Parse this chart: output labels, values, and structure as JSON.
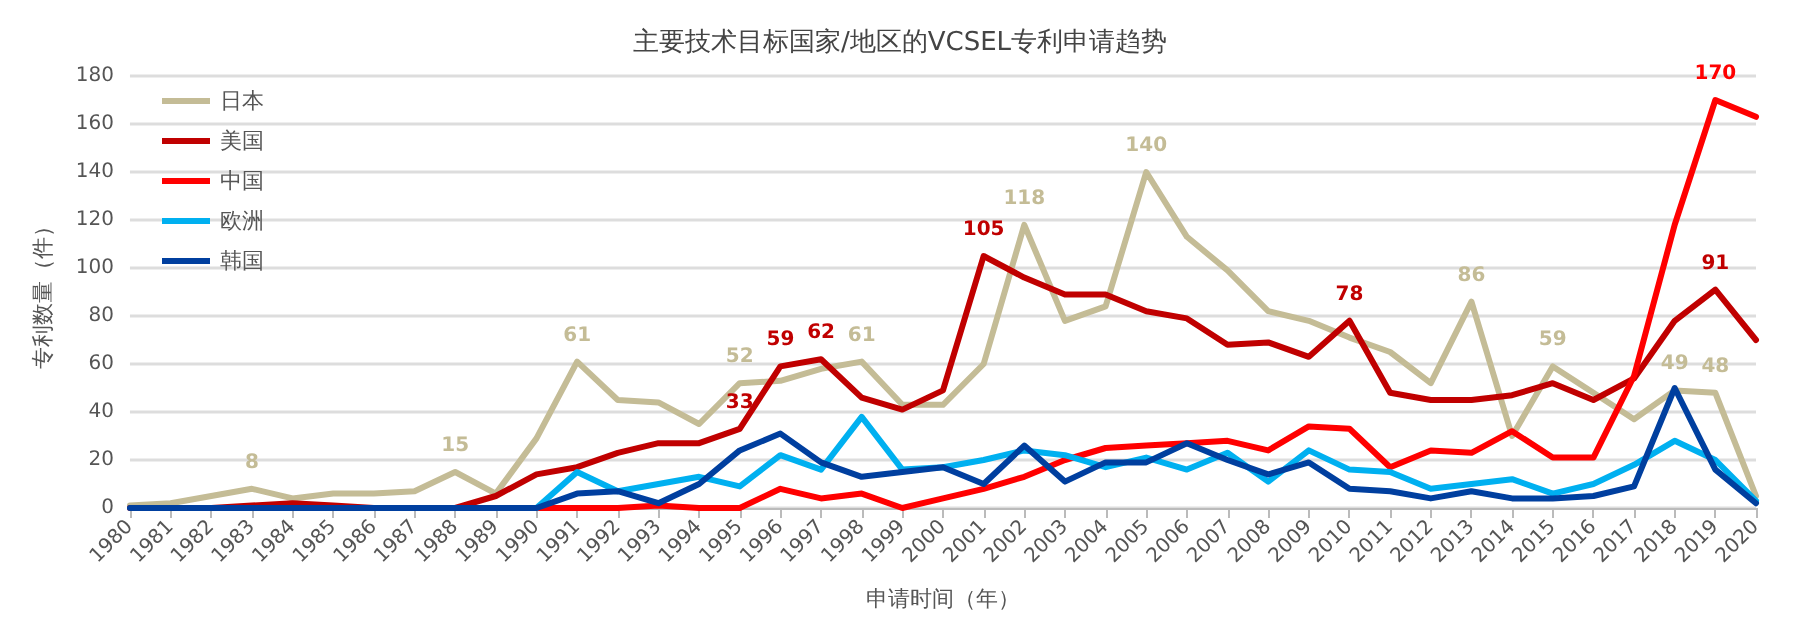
{
  "chart_data": {
    "type": "line",
    "title": "主要技术目标国家/地区的VCSEL专利申请趋势",
    "xlabel": "申请时间（年）",
    "ylabel": "专利数量（件）",
    "categories": [
      "1980",
      "1981",
      "1982",
      "1983",
      "1984",
      "1985",
      "1986",
      "1987",
      "1988",
      "1989",
      "1990",
      "1991",
      "1992",
      "1993",
      "1994",
      "1995",
      "1996",
      "1997",
      "1998",
      "1999",
      "2000",
      "2001",
      "2002",
      "2003",
      "2004",
      "2005",
      "2006",
      "2007",
      "2008",
      "2009",
      "2010",
      "2011",
      "2012",
      "2013",
      "2014",
      "2015",
      "2016",
      "2017",
      "2018",
      "2019",
      "2020"
    ],
    "ylim": [
      0,
      180
    ],
    "yticks": [
      0,
      20,
      40,
      60,
      80,
      100,
      120,
      140,
      160,
      180
    ],
    "grid": "y",
    "legend": "top left",
    "marker": "none",
    "line_style": "solid",
    "series": [
      {
        "name": "日本",
        "color": "#c4bc96",
        "values": [
          1,
          2,
          5,
          8,
          4,
          6,
          6,
          7,
          15,
          6,
          29,
          61,
          45,
          44,
          35,
          52,
          53,
          58,
          61,
          43,
          43,
          60,
          118,
          78,
          84,
          140,
          113,
          99,
          82,
          78,
          71,
          65,
          52,
          86,
          30,
          59,
          48,
          37,
          49,
          48,
          5
        ],
        "value_labels": [
          null,
          null,
          null,
          "8",
          null,
          null,
          null,
          null,
          "15",
          null,
          null,
          "61",
          null,
          null,
          null,
          "52",
          null,
          null,
          "61",
          null,
          null,
          null,
          "118",
          null,
          null,
          "140",
          null,
          null,
          null,
          null,
          null,
          null,
          null,
          "86",
          null,
          "59",
          null,
          null,
          "49",
          "48",
          null
        ]
      },
      {
        "name": "美国",
        "color": "#c00000",
        "values": [
          0,
          0,
          0,
          1,
          2,
          1,
          0,
          0,
          0,
          5,
          14,
          17,
          23,
          27,
          27,
          33,
          59,
          62,
          46,
          41,
          49,
          105,
          96,
          89,
          89,
          82,
          79,
          68,
          69,
          63,
          78,
          48,
          45,
          45,
          47,
          52,
          45,
          54,
          78,
          91,
          70
        ],
        "value_labels": [
          null,
          null,
          null,
          null,
          null,
          null,
          null,
          null,
          null,
          null,
          null,
          null,
          null,
          null,
          null,
          "33",
          "59",
          "62",
          null,
          null,
          null,
          "105",
          null,
          null,
          null,
          null,
          null,
          null,
          null,
          null,
          "78",
          null,
          null,
          null,
          null,
          null,
          null,
          null,
          null,
          "91",
          null
        ]
      },
      {
        "name": "中国",
        "color": "#ff0000",
        "values": [
          null,
          null,
          null,
          null,
          null,
          null,
          null,
          null,
          null,
          0,
          0,
          0,
          0,
          1,
          0,
          0,
          8,
          4,
          6,
          0,
          4,
          8,
          13,
          20,
          25,
          26,
          27,
          28,
          24,
          34,
          33,
          17,
          24,
          23,
          32,
          21,
          21,
          55,
          118,
          170,
          163
        ],
        "value_labels": [
          null,
          null,
          null,
          null,
          null,
          null,
          null,
          null,
          null,
          null,
          null,
          null,
          null,
          null,
          null,
          null,
          null,
          null,
          null,
          null,
          null,
          null,
          null,
          null,
          null,
          null,
          null,
          null,
          null,
          null,
          null,
          null,
          null,
          null,
          null,
          null,
          null,
          null,
          null,
          "170",
          null
        ]
      },
      {
        "name": "欧洲",
        "color": "#00b0f0",
        "values": [
          null,
          null,
          null,
          null,
          null,
          null,
          null,
          null,
          null,
          0,
          0,
          15,
          7,
          10,
          13,
          9,
          22,
          16,
          38,
          16,
          17,
          20,
          24,
          22,
          17,
          21,
          16,
          23,
          11,
          24,
          16,
          15,
          8,
          10,
          12,
          6,
          10,
          18,
          28,
          20,
          3
        ]
      },
      {
        "name": "韩国",
        "color": "#003f9f",
        "values": [
          0,
          0,
          0,
          0,
          0,
          0,
          0,
          0,
          0,
          0,
          0,
          6,
          7,
          2,
          10,
          24,
          31,
          19,
          13,
          15,
          17,
          10,
          26,
          11,
          19,
          19,
          27,
          20,
          14,
          19,
          8,
          7,
          4,
          7,
          4,
          4,
          5,
          9,
          50,
          16,
          2
        ]
      }
    ]
  }
}
